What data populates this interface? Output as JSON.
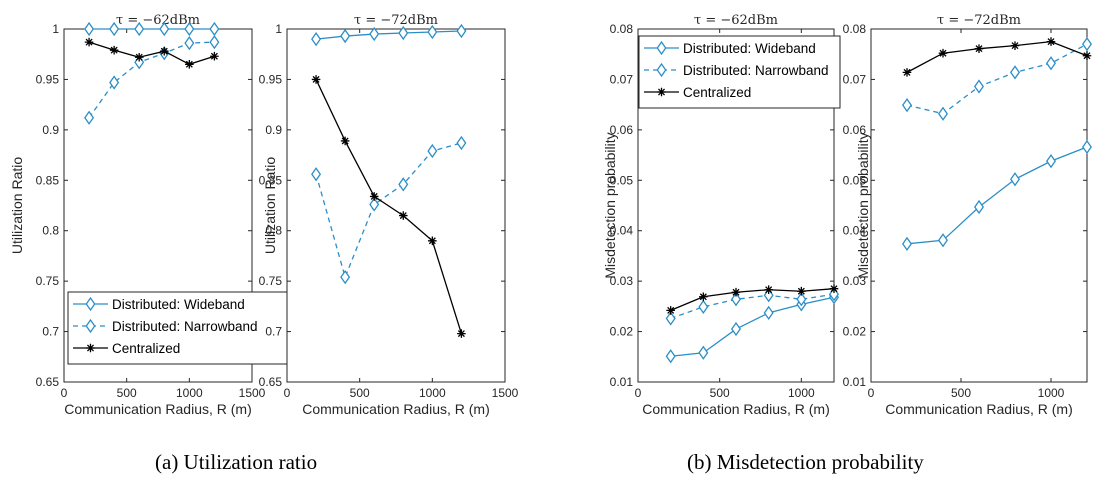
{
  "chart_data": [
    {
      "type": "line",
      "title": "τ = −62dBm",
      "xlabel": "Communication Radius, R (m)",
      "ylabel": "Utilization Ratio",
      "xlim": [
        0,
        1500
      ],
      "ylim": [
        0.65,
        1.0
      ],
      "xticks": [
        "0",
        "500",
        "1000",
        "1500"
      ],
      "yticks": [
        "0.65",
        "0.7",
        "0.75",
        "0.8",
        "0.85",
        "0.9",
        "0.95",
        "1"
      ],
      "x": [
        200,
        400,
        600,
        800,
        1000,
        1200
      ],
      "series": [
        {
          "name": "Distributed: Wideband",
          "values": [
            1.0,
            1.0,
            1.0,
            1.0,
            1.0,
            1.0
          ]
        },
        {
          "name": "Distributed: Narrowband",
          "values": [
            0.912,
            0.947,
            0.967,
            0.976,
            0.986,
            0.987
          ]
        },
        {
          "name": "Centralized",
          "values": [
            0.987,
            0.979,
            0.972,
            0.978,
            0.965,
            0.973
          ]
        }
      ],
      "legend": "bottom"
    },
    {
      "type": "line",
      "title": "τ = −72dBm",
      "xlabel": "Communication Radius, R (m)",
      "ylabel": "Utilization Ratio",
      "xlim": [
        0,
        1500
      ],
      "ylim": [
        0.65,
        1.0
      ],
      "xticks": [
        "0",
        "500",
        "1000",
        "1500"
      ],
      "yticks": [
        "0.65",
        "0.7",
        "0.75",
        "0.8",
        "0.85",
        "0.9",
        "0.95",
        "1"
      ],
      "x": [
        200,
        400,
        600,
        800,
        1000,
        1200
      ],
      "series": [
        {
          "name": "Distributed: Wideband",
          "values": [
            0.99,
            0.993,
            0.995,
            0.996,
            0.997,
            0.998
          ]
        },
        {
          "name": "Distributed: Narrowband",
          "values": [
            0.856,
            0.754,
            0.826,
            0.846,
            0.879,
            0.887
          ]
        },
        {
          "name": "Centralized",
          "values": [
            0.95,
            0.889,
            0.834,
            0.815,
            0.79,
            0.698
          ]
        }
      ]
    },
    {
      "type": "line",
      "title": "τ = −62dBm",
      "xlabel": "Communication Radius, R (m)",
      "ylabel": "Misdetection probability",
      "xlim": [
        0,
        1200
      ],
      "ylim": [
        0.01,
        0.08
      ],
      "xticks": [
        "0",
        "500",
        "1000"
      ],
      "yticks": [
        "0.01",
        "0.02",
        "0.03",
        "0.04",
        "0.05",
        "0.06",
        "0.07",
        "0.08"
      ],
      "x": [
        200,
        400,
        600,
        800,
        1000,
        1200
      ],
      "series": [
        {
          "name": "Distributed: Wideband",
          "values": [
            0.0151,
            0.0158,
            0.0205,
            0.0237,
            0.0254,
            0.0268
          ]
        },
        {
          "name": "Distributed: Narrowband",
          "values": [
            0.0226,
            0.0249,
            0.0264,
            0.0272,
            0.0264,
            0.0274
          ]
        },
        {
          "name": "Centralized",
          "values": [
            0.0242,
            0.0269,
            0.0278,
            0.0283,
            0.028,
            0.0285
          ]
        }
      ],
      "legend": "top"
    },
    {
      "type": "line",
      "title": "τ = −72dBm",
      "xlabel": "Communication Radius, R (m)",
      "ylabel": "Misdetection probability",
      "xlim": [
        0,
        1200
      ],
      "ylim": [
        0.01,
        0.08
      ],
      "xticks": [
        "0",
        "500",
        "1000"
      ],
      "yticks": [
        "0.01",
        "0.02",
        "0.03",
        "0.04",
        "0.05",
        "0.06",
        "0.07",
        "0.08"
      ],
      "x": [
        200,
        400,
        600,
        800,
        1000,
        1200
      ],
      "series": [
        {
          "name": "Distributed: Wideband",
          "values": [
            0.0374,
            0.0381,
            0.0447,
            0.0502,
            0.0538,
            0.0566
          ]
        },
        {
          "name": "Distributed: Narrowband",
          "values": [
            0.0649,
            0.0632,
            0.0686,
            0.0714,
            0.0732,
            0.077
          ]
        },
        {
          "name": "Centralized",
          "values": [
            0.0714,
            0.0752,
            0.0761,
            0.0767,
            0.0775,
            0.0747
          ]
        }
      ]
    }
  ],
  "captions": {
    "a": "(a) Utilization ratio",
    "b": "(b) Misdetection probability"
  },
  "colors": {
    "wideband": "#2b8ec7",
    "narrowband": "#2b8ec7",
    "centralized": "#000000",
    "axis": "#262626"
  }
}
